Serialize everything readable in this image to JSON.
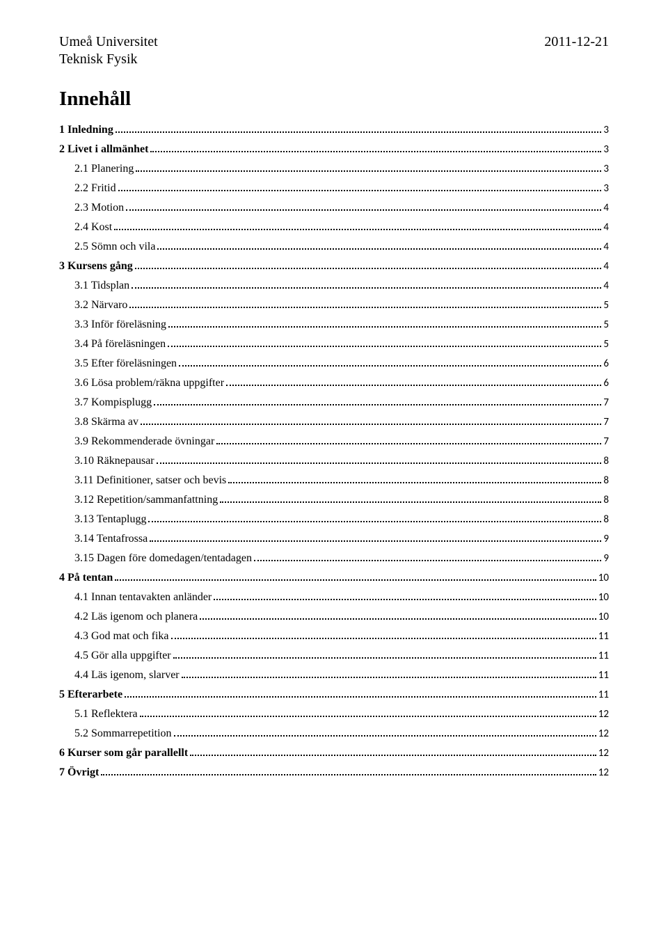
{
  "header": {
    "institution": "Umeå Universitet",
    "department": "Teknisk Fysik",
    "date": "2011-12-21"
  },
  "title": "Innehåll",
  "toc": [
    {
      "label": "1 Inledning",
      "page": "3",
      "bold": true,
      "indent": 0
    },
    {
      "label": "2 Livet i allmänhet",
      "page": "3",
      "bold": true,
      "indent": 0
    },
    {
      "label": "2.1 Planering",
      "page": "3",
      "bold": false,
      "indent": 1
    },
    {
      "label": "2.2 Fritid",
      "page": "3",
      "bold": false,
      "indent": 1
    },
    {
      "label": "2.3 Motion",
      "page": "4",
      "bold": false,
      "indent": 1
    },
    {
      "label": "2.4 Kost",
      "page": "4",
      "bold": false,
      "indent": 1
    },
    {
      "label": "2.5 Sömn och vila",
      "page": "4",
      "bold": false,
      "indent": 1
    },
    {
      "label": "3 Kursens gång",
      "page": "4",
      "bold": true,
      "indent": 0
    },
    {
      "label": "3.1 Tidsplan",
      "page": "4",
      "bold": false,
      "indent": 1
    },
    {
      "label": "3.2 Närvaro",
      "page": "5",
      "bold": false,
      "indent": 1
    },
    {
      "label": "3.3 Inför föreläsning",
      "page": "5",
      "bold": false,
      "indent": 1
    },
    {
      "label": "3.4 På föreläsningen",
      "page": "5",
      "bold": false,
      "indent": 1
    },
    {
      "label": "3.5 Efter föreläsningen",
      "page": "6",
      "bold": false,
      "indent": 1
    },
    {
      "label": "3.6 Lösa problem/räkna uppgifter",
      "page": "6",
      "bold": false,
      "indent": 1
    },
    {
      "label": "3.7 Kompisplugg",
      "page": "7",
      "bold": false,
      "indent": 1
    },
    {
      "label": "3.8 Skärma av",
      "page": "7",
      "bold": false,
      "indent": 1
    },
    {
      "label": "3.9 Rekommenderade övningar",
      "page": "7",
      "bold": false,
      "indent": 1
    },
    {
      "label": "3.10 Räknepausar",
      "page": "8",
      "bold": false,
      "indent": 1
    },
    {
      "label": "3.11 Definitioner, satser och bevis",
      "page": "8",
      "bold": false,
      "indent": 1
    },
    {
      "label": "3.12 Repetition/sammanfattning",
      "page": "8",
      "bold": false,
      "indent": 1
    },
    {
      "label": "3.13 Tentaplugg",
      "page": "8",
      "bold": false,
      "indent": 1
    },
    {
      "label": "3.14 Tentafrossa",
      "page": "9",
      "bold": false,
      "indent": 1
    },
    {
      "label": "3.15 Dagen före domedagen/tentadagen",
      "page": "9",
      "bold": false,
      "indent": 1
    },
    {
      "label": "4 På tentan",
      "page": "10",
      "bold": true,
      "indent": 0
    },
    {
      "label": "4.1 Innan tentavakten anländer",
      "page": "10",
      "bold": false,
      "indent": 1
    },
    {
      "label": "4.2 Läs igenom och planera",
      "page": "10",
      "bold": false,
      "indent": 1
    },
    {
      "label": "4.3 God mat och fika",
      "page": "11",
      "bold": false,
      "indent": 1
    },
    {
      "label": "4.5 Gör alla uppgifter",
      "page": "11",
      "bold": false,
      "indent": 1
    },
    {
      "label": "4.4 Läs igenom, slarver",
      "page": "11",
      "bold": false,
      "indent": 1
    },
    {
      "label": "5 Efterarbete",
      "page": "11",
      "bold": true,
      "indent": 0
    },
    {
      "label": "5.1 Reflektera",
      "page": "12",
      "bold": false,
      "indent": 1
    },
    {
      "label": "5.2 Sommarrepetition",
      "page": "12",
      "bold": false,
      "indent": 1
    },
    {
      "label": "6 Kurser som går parallellt",
      "page": "12",
      "bold": true,
      "indent": 0
    },
    {
      "label": "7 Övrigt",
      "page": "12",
      "bold": true,
      "indent": 0
    }
  ]
}
